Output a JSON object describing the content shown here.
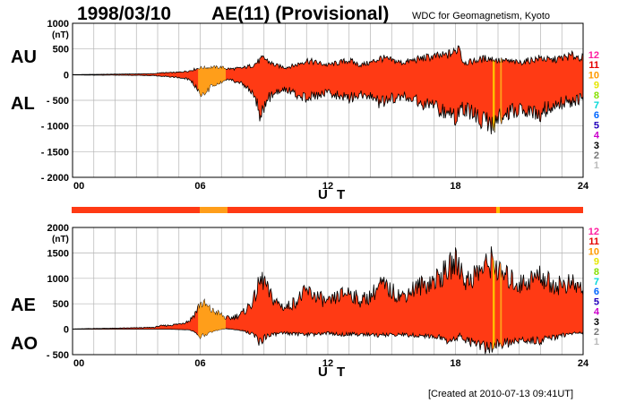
{
  "header": {
    "date": "1998/03/10",
    "title": "AE(11) (Provisional)",
    "source": "WDC for Geomagnetism, Kyoto",
    "created": "[Created at 2010-07-13 09:41UT]"
  },
  "colors": {
    "fill_main": "#ff3a14",
    "fill_early": "#ff9e1a",
    "fill_mark": "#ffc000",
    "grid": "#b4b4b4",
    "strip": "#ff3a14"
  },
  "legend": [
    {
      "label": "12",
      "color": "#ff1ea0"
    },
    {
      "label": "11",
      "color": "#e60000"
    },
    {
      "label": "10",
      "color": "#ff9a00"
    },
    {
      "label": "9",
      "color": "#e6e600"
    },
    {
      "label": "8",
      "color": "#88e000"
    },
    {
      "label": "7",
      "color": "#00d8d8"
    },
    {
      "label": "6",
      "color": "#0066ff"
    },
    {
      "label": "5",
      "color": "#2200bb"
    },
    {
      "label": "4",
      "color": "#cc00cc"
    },
    {
      "label": "3",
      "color": "#000000"
    },
    {
      "label": "2",
      "color": "#777777"
    },
    {
      "label": "1",
      "color": "#bbbbbb"
    }
  ],
  "chart_data": [
    {
      "type": "area",
      "id": "au_al",
      "ylabel_top": "AU",
      "ylabel_bottom": "AL",
      "unit": "(nT)",
      "xlabel": "U T",
      "xlim": [
        0,
        24
      ],
      "ylim": [
        -2000,
        1000
      ],
      "yticks": [
        1000,
        500,
        0,
        -500,
        -1000,
        -1500,
        -2000
      ],
      "ytick_labels": [
        "1000",
        "500",
        "0",
        "- 500",
        "- 1000",
        "- 1500",
        "- 2000"
      ],
      "xticks": [
        0,
        6,
        12,
        18,
        24
      ],
      "xtick_labels": [
        "00",
        "06",
        "12",
        "18",
        "24"
      ],
      "grid": true,
      "series": [
        {
          "name": "AU",
          "x": [
            0,
            1,
            2,
            3,
            3.9,
            4,
            4.5,
            5,
            5.5,
            5.8,
            6,
            6.2,
            6.5,
            7,
            7.2,
            7.5,
            8,
            8.5,
            8.8,
            9,
            9.2,
            9.5,
            10,
            10.5,
            11,
            11.5,
            12,
            12.5,
            13,
            13.5,
            14,
            14.5,
            15,
            15.5,
            16,
            16.5,
            17,
            17.5,
            18,
            18.2,
            18.3,
            18.5,
            19,
            19.5,
            20,
            20.5,
            21,
            21.5,
            22,
            22.5,
            23,
            23.5,
            24
          ],
          "y": [
            0,
            5,
            10,
            15,
            20,
            35,
            40,
            50,
            80,
            120,
            140,
            140,
            150,
            150,
            130,
            120,
            140,
            200,
            300,
            350,
            280,
            200,
            150,
            200,
            300,
            250,
            200,
            250,
            300,
            200,
            250,
            350,
            300,
            250,
            300,
            350,
            380,
            400,
            480,
            650,
            300,
            250,
            300,
            350,
            300,
            280,
            250,
            300,
            350,
            300,
            350,
            400,
            350
          ]
        },
        {
          "name": "AL",
          "x": [
            0,
            1,
            2,
            3,
            3.9,
            4,
            4.5,
            5,
            5.5,
            5.8,
            6,
            6.2,
            6.5,
            7,
            7.2,
            7.5,
            8,
            8.5,
            8.8,
            9,
            9.2,
            9.5,
            10,
            10.5,
            11,
            11.5,
            12,
            12.5,
            13,
            13.5,
            14,
            14.5,
            15,
            15.5,
            16,
            16.5,
            17,
            17.5,
            18,
            18.2,
            18.5,
            19,
            19.5,
            19.8,
            20,
            20.5,
            21,
            21.5,
            22,
            22.5,
            23,
            23.5,
            24
          ],
          "y": [
            -5,
            -10,
            -10,
            -15,
            -20,
            -30,
            -40,
            -60,
            -100,
            -250,
            -400,
            -380,
            -250,
            -150,
            -100,
            -120,
            -200,
            -400,
            -800,
            -700,
            -500,
            -400,
            -300,
            -400,
            -500,
            -450,
            -350,
            -450,
            -500,
            -400,
            -450,
            -600,
            -500,
            -450,
            -550,
            -600,
            -650,
            -800,
            -950,
            -700,
            -750,
            -900,
            -1050,
            -1200,
            -900,
            -800,
            -700,
            -750,
            -800,
            -650,
            -600,
            -550,
            -500
          ]
        }
      ]
    },
    {
      "type": "area",
      "id": "ae_ao",
      "ylabel_top": "AE",
      "ylabel_bottom": "AO",
      "unit": "(nT)",
      "xlabel": "U T",
      "xlim": [
        0,
        24
      ],
      "ylim": [
        -500,
        2000
      ],
      "yticks": [
        2000,
        1500,
        1000,
        500,
        0,
        -500
      ],
      "ytick_labels": [
        "2000",
        "1500",
        "1000",
        "500",
        "0",
        "- 500"
      ],
      "xticks": [
        0,
        6,
        12,
        18,
        24
      ],
      "xtick_labels": [
        "00",
        "06",
        "12",
        "18",
        "24"
      ],
      "grid": true,
      "series": [
        {
          "name": "AE",
          "x": [
            0,
            1,
            2,
            3,
            3.9,
            4,
            4.5,
            5,
            5.5,
            5.8,
            6,
            6.2,
            6.5,
            7,
            7.2,
            7.5,
            8,
            8.5,
            8.8,
            9,
            9.2,
            9.5,
            10,
            10.5,
            11,
            11.5,
            12,
            12.5,
            13,
            13.5,
            14,
            14.5,
            15,
            15.5,
            16,
            16.5,
            17,
            17.5,
            18,
            18.2,
            18.5,
            19,
            19.5,
            19.8,
            20,
            20.5,
            21,
            21.5,
            22,
            22.5,
            23,
            23.5,
            24
          ],
          "y": [
            5,
            15,
            20,
            30,
            40,
            65,
            80,
            110,
            180,
            370,
            540,
            520,
            400,
            300,
            230,
            240,
            340,
            600,
            1000,
            1050,
            780,
            600,
            450,
            600,
            800,
            700,
            550,
            700,
            800,
            600,
            700,
            950,
            800,
            700,
            850,
            950,
            1030,
            1200,
            1430,
            1350,
            1000,
            1200,
            1350,
            1500,
            1200,
            1080,
            950,
            1050,
            1150,
            950,
            950,
            950,
            850
          ]
        },
        {
          "name": "AO",
          "x": [
            0,
            1,
            2,
            3,
            3.9,
            4,
            4.5,
            5,
            5.5,
            5.8,
            6,
            6.2,
            6.5,
            7,
            7.2,
            7.5,
            8,
            8.5,
            8.8,
            9,
            9.2,
            9.5,
            10,
            10.5,
            11,
            11.5,
            12,
            12.5,
            13,
            13.5,
            14,
            14.5,
            15,
            15.5,
            16,
            16.5,
            17,
            17.5,
            18,
            18.2,
            18.5,
            19,
            19.5,
            19.8,
            20,
            20.5,
            21,
            21.5,
            22,
            22.5,
            23,
            23.5,
            24
          ],
          "y": [
            0,
            0,
            0,
            0,
            0,
            0,
            0,
            -5,
            -10,
            -60,
            -130,
            -120,
            -50,
            0,
            15,
            0,
            -30,
            -100,
            -250,
            -175,
            -110,
            -100,
            -75,
            -100,
            -100,
            -100,
            -75,
            -100,
            -100,
            -100,
            -100,
            -125,
            -100,
            -100,
            -125,
            -125,
            -135,
            -200,
            -235,
            -100,
            -225,
            -300,
            -375,
            -425,
            -300,
            -260,
            -225,
            -225,
            -225,
            -175,
            -125,
            -75,
            -75
          ]
        }
      ]
    }
  ]
}
